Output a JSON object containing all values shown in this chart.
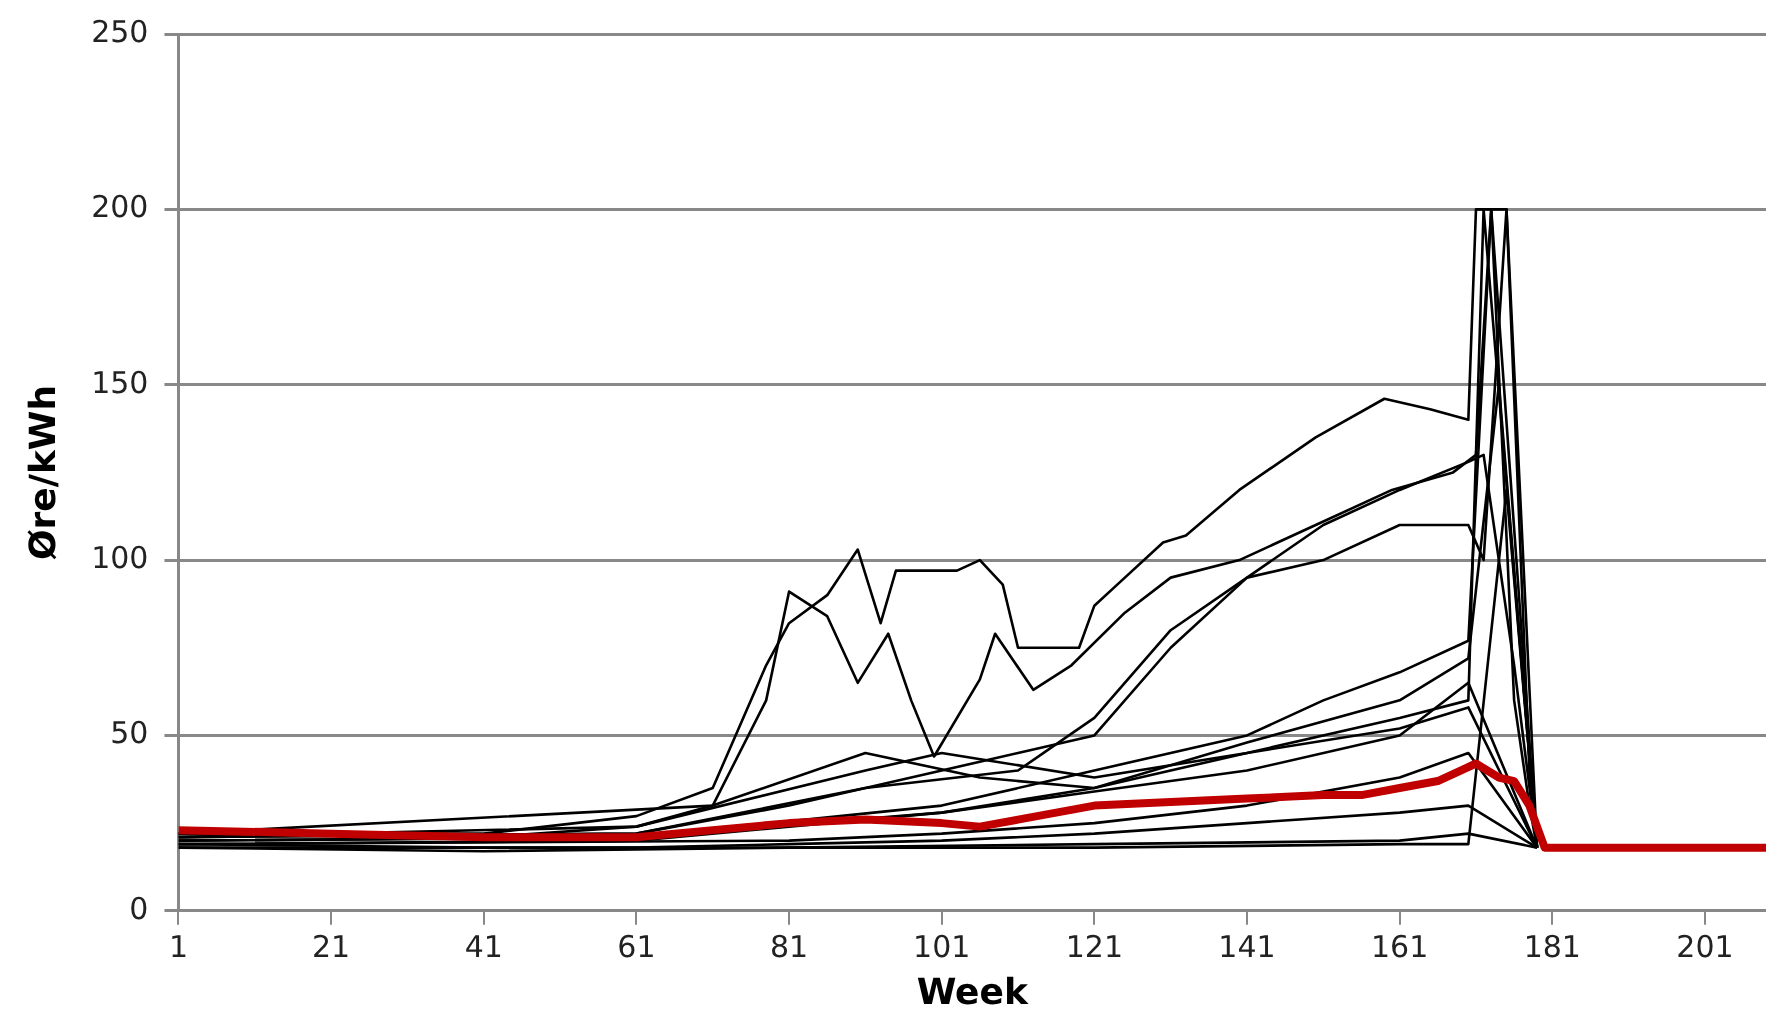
{
  "chart_data": {
    "type": "line",
    "xlabel": "Week",
    "ylabel": "Øre/kWh",
    "xlim": [
      1,
      209
    ],
    "xticks": [
      1,
      21,
      41,
      61,
      81,
      101,
      121,
      141,
      161,
      181,
      201
    ],
    "ylim": [
      0,
      250
    ],
    "yticks": [
      0,
      50,
      100,
      150,
      200,
      250
    ],
    "grid": "y",
    "legend": false,
    "marker": "none",
    "line_style": "solid",
    "series": [
      {
        "color": "#c00000",
        "x": [
          1,
          21,
          41,
          61,
          71,
          81,
          91,
          101,
          106,
          111,
          121,
          131,
          141,
          151,
          156,
          161,
          166,
          171,
          174,
          176,
          178,
          180,
          209
        ],
        "values": [
          23,
          22,
          21,
          21,
          23,
          25,
          26,
          25,
          24,
          26,
          30,
          31,
          32,
          33,
          33,
          35,
          37,
          42,
          38,
          37,
          30,
          18,
          18
        ]
      },
      {
        "color": "#000000",
        "x": [
          1,
          41,
          61,
          71,
          78,
          81,
          86,
          90,
          93,
          95,
          99,
          103,
          106,
          109,
          111,
          119,
          121,
          124,
          130,
          133,
          140,
          150,
          159,
          165,
          170,
          171,
          173,
          176,
          178,
          179
        ],
        "values": [
          22,
          22,
          27,
          35,
          70,
          82,
          90,
          103,
          82,
          97,
          97,
          97,
          100,
          93,
          75,
          75,
          87,
          93,
          105,
          107,
          120,
          135,
          146,
          143,
          140,
          200,
          200,
          60,
          30,
          18
        ]
      },
      {
        "color": "#000000",
        "x": [
          1,
          41,
          61,
          71,
          78,
          81,
          86,
          90,
          94,
          97,
          100,
          106,
          108,
          113,
          118,
          125,
          131,
          140,
          150,
          160,
          168,
          171,
          173,
          175,
          178,
          179
        ],
        "values": [
          22,
          21,
          24,
          30,
          60,
          91,
          84,
          65,
          79,
          60,
          44,
          66,
          79,
          63,
          70,
          85,
          95,
          100,
          110,
          120,
          125,
          130,
          200,
          200,
          40,
          18
        ]
      },
      {
        "color": "#000000",
        "x": [
          1,
          61,
          81,
          101,
          111,
          121,
          131,
          141,
          151,
          161,
          170,
          172,
          176,
          179
        ],
        "values": [
          21,
          22,
          30,
          40,
          45,
          50,
          75,
          95,
          110,
          120,
          128,
          130,
          70,
          18
        ]
      },
      {
        "color": "#000000",
        "x": [
          1,
          61,
          91,
          111,
          121,
          131,
          141,
          151,
          161,
          170,
          172,
          175,
          179
        ],
        "values": [
          21,
          22,
          35,
          40,
          55,
          80,
          95,
          100,
          110,
          110,
          100,
          200,
          18
        ]
      },
      {
        "color": "#000000",
        "x": [
          1,
          61,
          101,
          121,
          141,
          151,
          161,
          170,
          173,
          179
        ],
        "values": [
          20,
          21,
          30,
          40,
          50,
          60,
          68,
          77,
          200,
          18
        ]
      },
      {
        "color": "#000000",
        "x": [
          1,
          61,
          101,
          121,
          141,
          161,
          170,
          174,
          179
        ],
        "values": [
          19,
          20,
          28,
          35,
          48,
          60,
          72,
          150,
          18
        ]
      },
      {
        "color": "#000000",
        "x": [
          1,
          61,
          101,
          121,
          141,
          161,
          170,
          179
        ],
        "values": [
          20,
          21,
          28,
          34,
          40,
          50,
          65,
          18
        ]
      },
      {
        "color": "#000000",
        "x": [
          1,
          61,
          91,
          101,
          121,
          141,
          161,
          170,
          172,
          179
        ],
        "values": [
          21,
          24,
          40,
          45,
          38,
          45,
          55,
          60,
          200,
          18
        ]
      },
      {
        "color": "#000000",
        "x": [
          1,
          81,
          101,
          121,
          141,
          161,
          170,
          179
        ],
        "values": [
          19,
          20,
          22,
          25,
          30,
          38,
          45,
          18
        ]
      },
      {
        "color": "#000000",
        "x": [
          1,
          61,
          81,
          101,
          121,
          141,
          161,
          170,
          179
        ],
        "values": [
          18,
          18,
          19,
          20,
          22,
          25,
          28,
          30,
          18
        ]
      },
      {
        "color": "#000000",
        "x": [
          1,
          41,
          81,
          121,
          161,
          170,
          179
        ],
        "values": [
          19,
          18,
          18,
          19,
          20,
          22,
          18
        ]
      },
      {
        "color": "#000000",
        "x": [
          1,
          71,
          91,
          106,
          121,
          141,
          161,
          170,
          179
        ],
        "values": [
          22,
          30,
          45,
          38,
          35,
          45,
          52,
          58,
          18
        ]
      },
      {
        "color": "#000000",
        "x": [
          1,
          41,
          81,
          121,
          161,
          170,
          175,
          179
        ],
        "values": [
          18,
          17,
          18,
          18,
          19,
          19,
          120,
          18
        ]
      }
    ]
  }
}
